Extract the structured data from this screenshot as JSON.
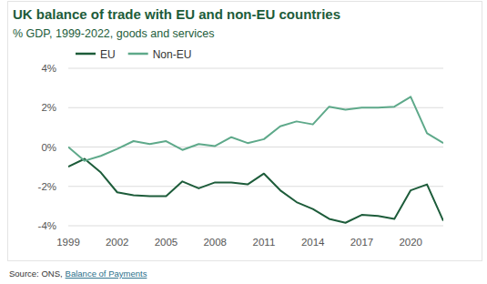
{
  "chart_data": {
    "type": "line",
    "title": "UK balance of trade with EU and non-EU countries",
    "subtitle": "% GDP, 1999-2022, goods and services",
    "source": "Source: ONS,",
    "source_link": "Balance of Payments",
    "x": [
      1999,
      2000,
      2001,
      2002,
      2003,
      2004,
      2005,
      2006,
      2007,
      2008,
      2009,
      2010,
      2011,
      2012,
      2013,
      2014,
      2015,
      2016,
      2017,
      2018,
      2019,
      2020,
      2021,
      2022
    ],
    "series": [
      {
        "name": "EU",
        "color": "#1d5c3a",
        "values": [
          -1.0,
          -0.6,
          -1.3,
          -2.3,
          -2.45,
          -2.5,
          -2.5,
          -1.75,
          -2.1,
          -1.8,
          -1.8,
          -1.9,
          -1.35,
          -2.2,
          -2.8,
          -3.15,
          -3.65,
          -3.85,
          -3.45,
          -3.5,
          -3.65,
          -2.2,
          -1.9,
          -3.75
        ]
      },
      {
        "name": "Non-EU",
        "color": "#5ea98a",
        "values": [
          0.0,
          -0.7,
          -0.45,
          -0.1,
          0.3,
          0.15,
          0.3,
          -0.15,
          0.15,
          0.05,
          0.5,
          0.2,
          0.4,
          1.05,
          1.3,
          1.15,
          2.05,
          1.9,
          2.0,
          2.0,
          2.05,
          2.55,
          0.7,
          0.2
        ]
      }
    ],
    "xlim": [
      1999,
      2022
    ],
    "xticks": [
      1999,
      2002,
      2005,
      2008,
      2011,
      2014,
      2017,
      2020
    ],
    "ylim": [
      -4,
      4
    ],
    "yticks": [
      {
        "value": -4,
        "label": "-4%"
      },
      {
        "value": -2,
        "label": "-2%"
      },
      {
        "value": 0,
        "label": "0%"
      },
      {
        "value": 2,
        "label": "2%"
      },
      {
        "value": 4,
        "label": "4%"
      }
    ],
    "grid": true,
    "legend": "upper left"
  }
}
